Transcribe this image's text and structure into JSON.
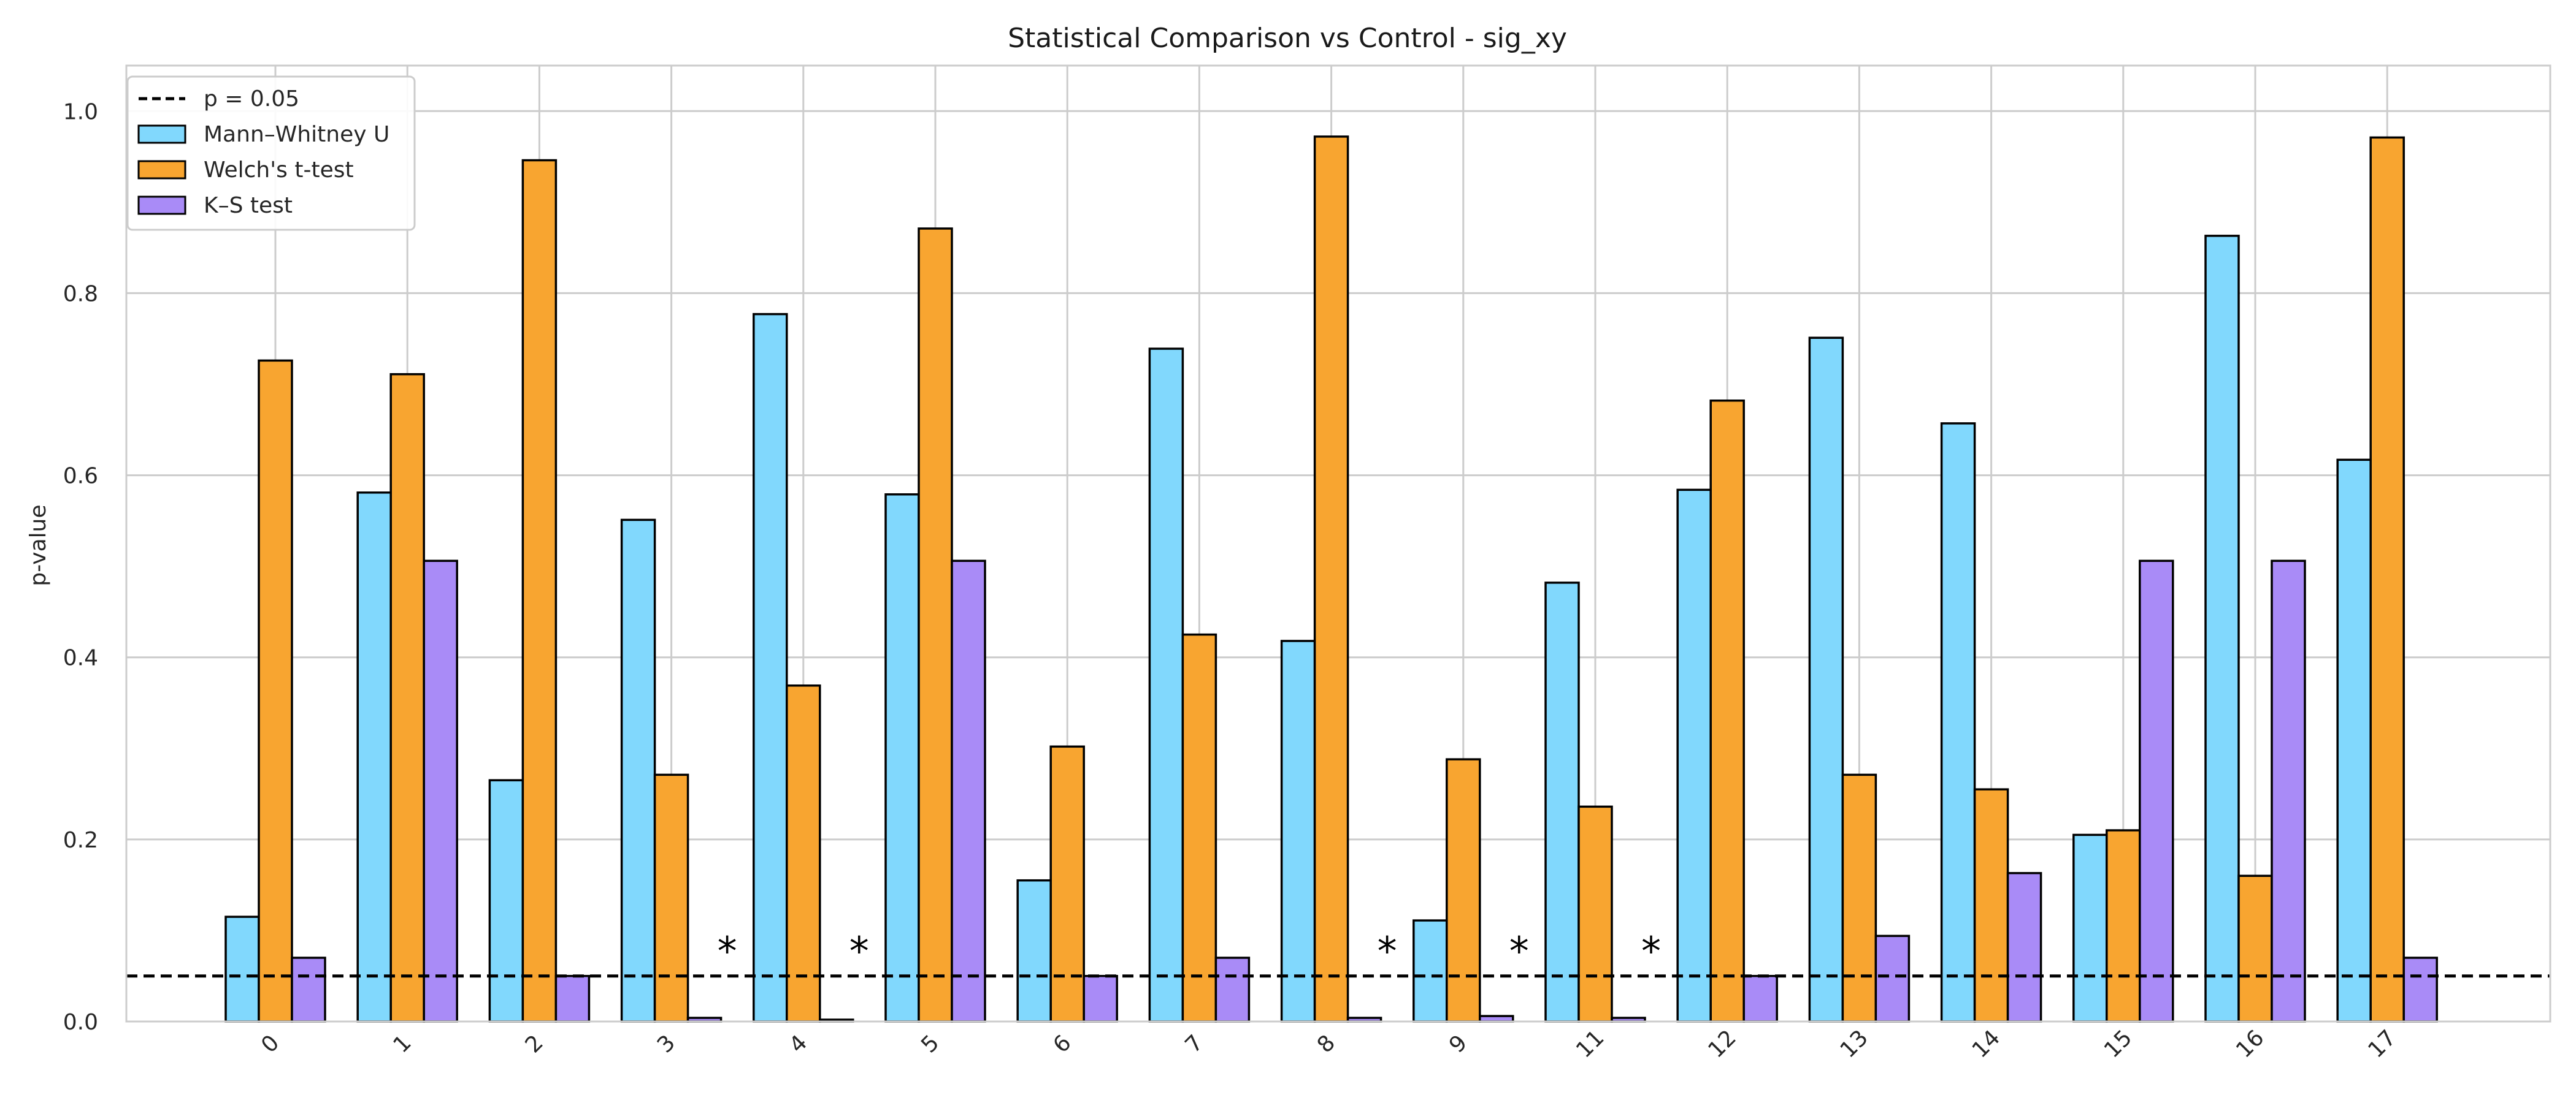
{
  "chart_data": {
    "type": "bar",
    "title": "Statistical Comparison vs Control - sig_xy",
    "xlabel": "",
    "ylabel": "p-value",
    "ylim": [
      0,
      1.05
    ],
    "yticks": [
      "0.0",
      "0.2",
      "0.4",
      "0.6",
      "0.8",
      "1.0"
    ],
    "categories": [
      "0",
      "1",
      "2",
      "3",
      "4",
      "5",
      "6",
      "7",
      "8",
      "9",
      "11",
      "12",
      "13",
      "14",
      "15",
      "16",
      "17"
    ],
    "series": [
      {
        "name": "Mann–Whitney U",
        "color": "#81d8fd",
        "values": [
          0.115,
          0.581,
          0.265,
          0.551,
          0.777,
          0.579,
          0.155,
          0.739,
          0.418,
          0.111,
          0.482,
          0.584,
          0.751,
          0.657,
          0.205,
          0.863,
          0.617
        ]
      },
      {
        "name": "Welch's t-test",
        "color": "#f8a530",
        "values": [
          0.726,
          0.711,
          0.946,
          0.271,
          0.369,
          0.871,
          0.302,
          0.425,
          0.972,
          0.288,
          0.236,
          0.682,
          0.271,
          0.255,
          0.21,
          0.16,
          0.971
        ]
      },
      {
        "name": "K–S test",
        "color": "#a98bf7",
        "values": [
          0.07,
          0.506,
          0.05,
          0.004,
          0.002,
          0.506,
          0.05,
          0.07,
          0.004,
          0.006,
          0.004,
          0.05,
          0.094,
          0.163,
          0.506,
          0.506,
          0.07
        ]
      }
    ],
    "threshold": {
      "value": 0.05,
      "label": "p = 0.05",
      "style": "dashed",
      "color": "#000000"
    },
    "significance_marker": "*",
    "significant_categories": [
      "3",
      "4",
      "8",
      "9",
      "11"
    ],
    "legend_position": "top-left",
    "grid": true
  }
}
